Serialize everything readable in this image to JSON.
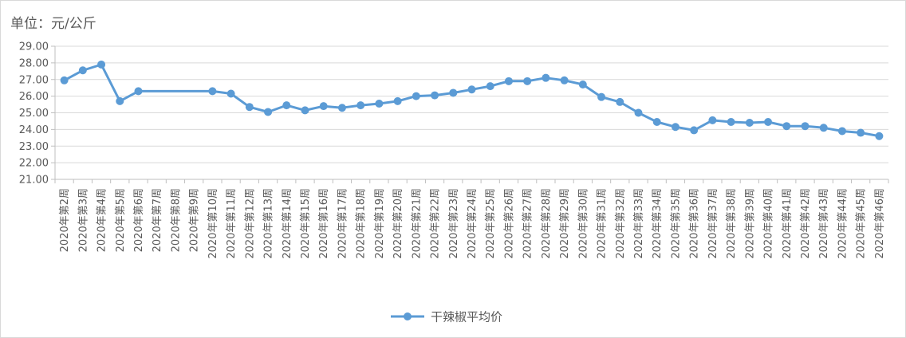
{
  "unit_label": "单位：元/公斤",
  "colors": {
    "series": "#5b9bd5",
    "grid": "#d9d9d9",
    "axis": "#bfbfbf",
    "text": "#595959"
  },
  "chart_data": {
    "type": "line",
    "ylim": [
      21,
      29
    ],
    "yticks": [
      "21.00",
      "22.00",
      "23.00",
      "24.00",
      "25.00",
      "26.00",
      "27.00",
      "28.00",
      "29.00"
    ],
    "grid": true,
    "legend_position": "bottom",
    "categories": [
      "2020年第2周",
      "2020年第3周",
      "2020年第4周",
      "2020年第5周",
      "2020年第6周",
      "2020年第7周",
      "2020年第8周",
      "2020年第9周",
      "2020年第10周",
      "2020年第11周",
      "2020年第12周",
      "2020年第13周",
      "2020年第14周",
      "2020年第15周",
      "2020年第16周",
      "2020年第17周",
      "2020年第18周",
      "2020年第19周",
      "2020年第20周",
      "2020年第21周",
      "2020年第22周",
      "2020年第23周",
      "2020年第24周",
      "2020年第25周",
      "2020年第26周",
      "2020年第27周",
      "2020年第28周",
      "2020年第29周",
      "2020年第30周",
      "2020年第31周",
      "2020年第32周",
      "2020年第33周",
      "2020年第34周",
      "2020年第35周",
      "2020年第36周",
      "2020年第37周",
      "2020年第38周",
      "2020年第39周",
      "2020年第40周",
      "2020年第41周",
      "2020年第42周",
      "2020年第43周",
      "2020年第44周",
      "2020年第45周",
      "2020年第46周"
    ],
    "series": [
      {
        "name": "干辣椒平均价",
        "values": [
          26.95,
          27.55,
          27.9,
          25.7,
          26.3,
          null,
          null,
          null,
          26.3,
          26.15,
          25.35,
          25.05,
          25.45,
          25.15,
          25.4,
          25.3,
          25.45,
          25.55,
          25.7,
          26.0,
          26.05,
          26.2,
          26.4,
          26.6,
          26.9,
          26.9,
          27.1,
          26.95,
          26.7,
          25.95,
          25.65,
          25.0,
          24.45,
          24.15,
          23.95,
          24.55,
          24.45,
          24.4,
          24.45,
          24.2,
          24.2,
          24.1,
          23.9,
          23.8,
          23.6
        ]
      }
    ]
  }
}
